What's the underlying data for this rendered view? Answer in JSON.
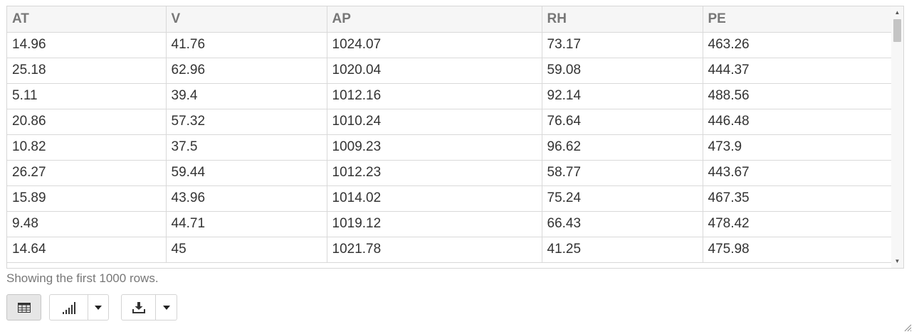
{
  "table": {
    "columns": [
      "AT",
      "V",
      "AP",
      "RH",
      "PE"
    ],
    "rows": [
      [
        "14.96",
        "41.76",
        "1024.07",
        "73.17",
        "463.26"
      ],
      [
        "25.18",
        "62.96",
        "1020.04",
        "59.08",
        "444.37"
      ],
      [
        "5.11",
        "39.4",
        "1012.16",
        "92.14",
        "488.56"
      ],
      [
        "20.86",
        "57.32",
        "1010.24",
        "76.64",
        "446.48"
      ],
      [
        "10.82",
        "37.5",
        "1009.23",
        "96.62",
        "473.9"
      ],
      [
        "26.27",
        "59.44",
        "1012.23",
        "58.77",
        "443.67"
      ],
      [
        "15.89",
        "43.96",
        "1014.02",
        "75.24",
        "467.35"
      ],
      [
        "9.48",
        "44.71",
        "1019.12",
        "66.43",
        "478.42"
      ],
      [
        "14.64",
        "45",
        "1021.78",
        "41.25",
        "475.98"
      ]
    ]
  },
  "footer": {
    "note": "Showing the first 1000 rows."
  },
  "toolbar": {
    "table_view_icon": "table-grid-icon",
    "chart_icon": "bar-chart-icon",
    "download_icon": "download-icon",
    "caret_icon": "chevron-down-icon"
  }
}
